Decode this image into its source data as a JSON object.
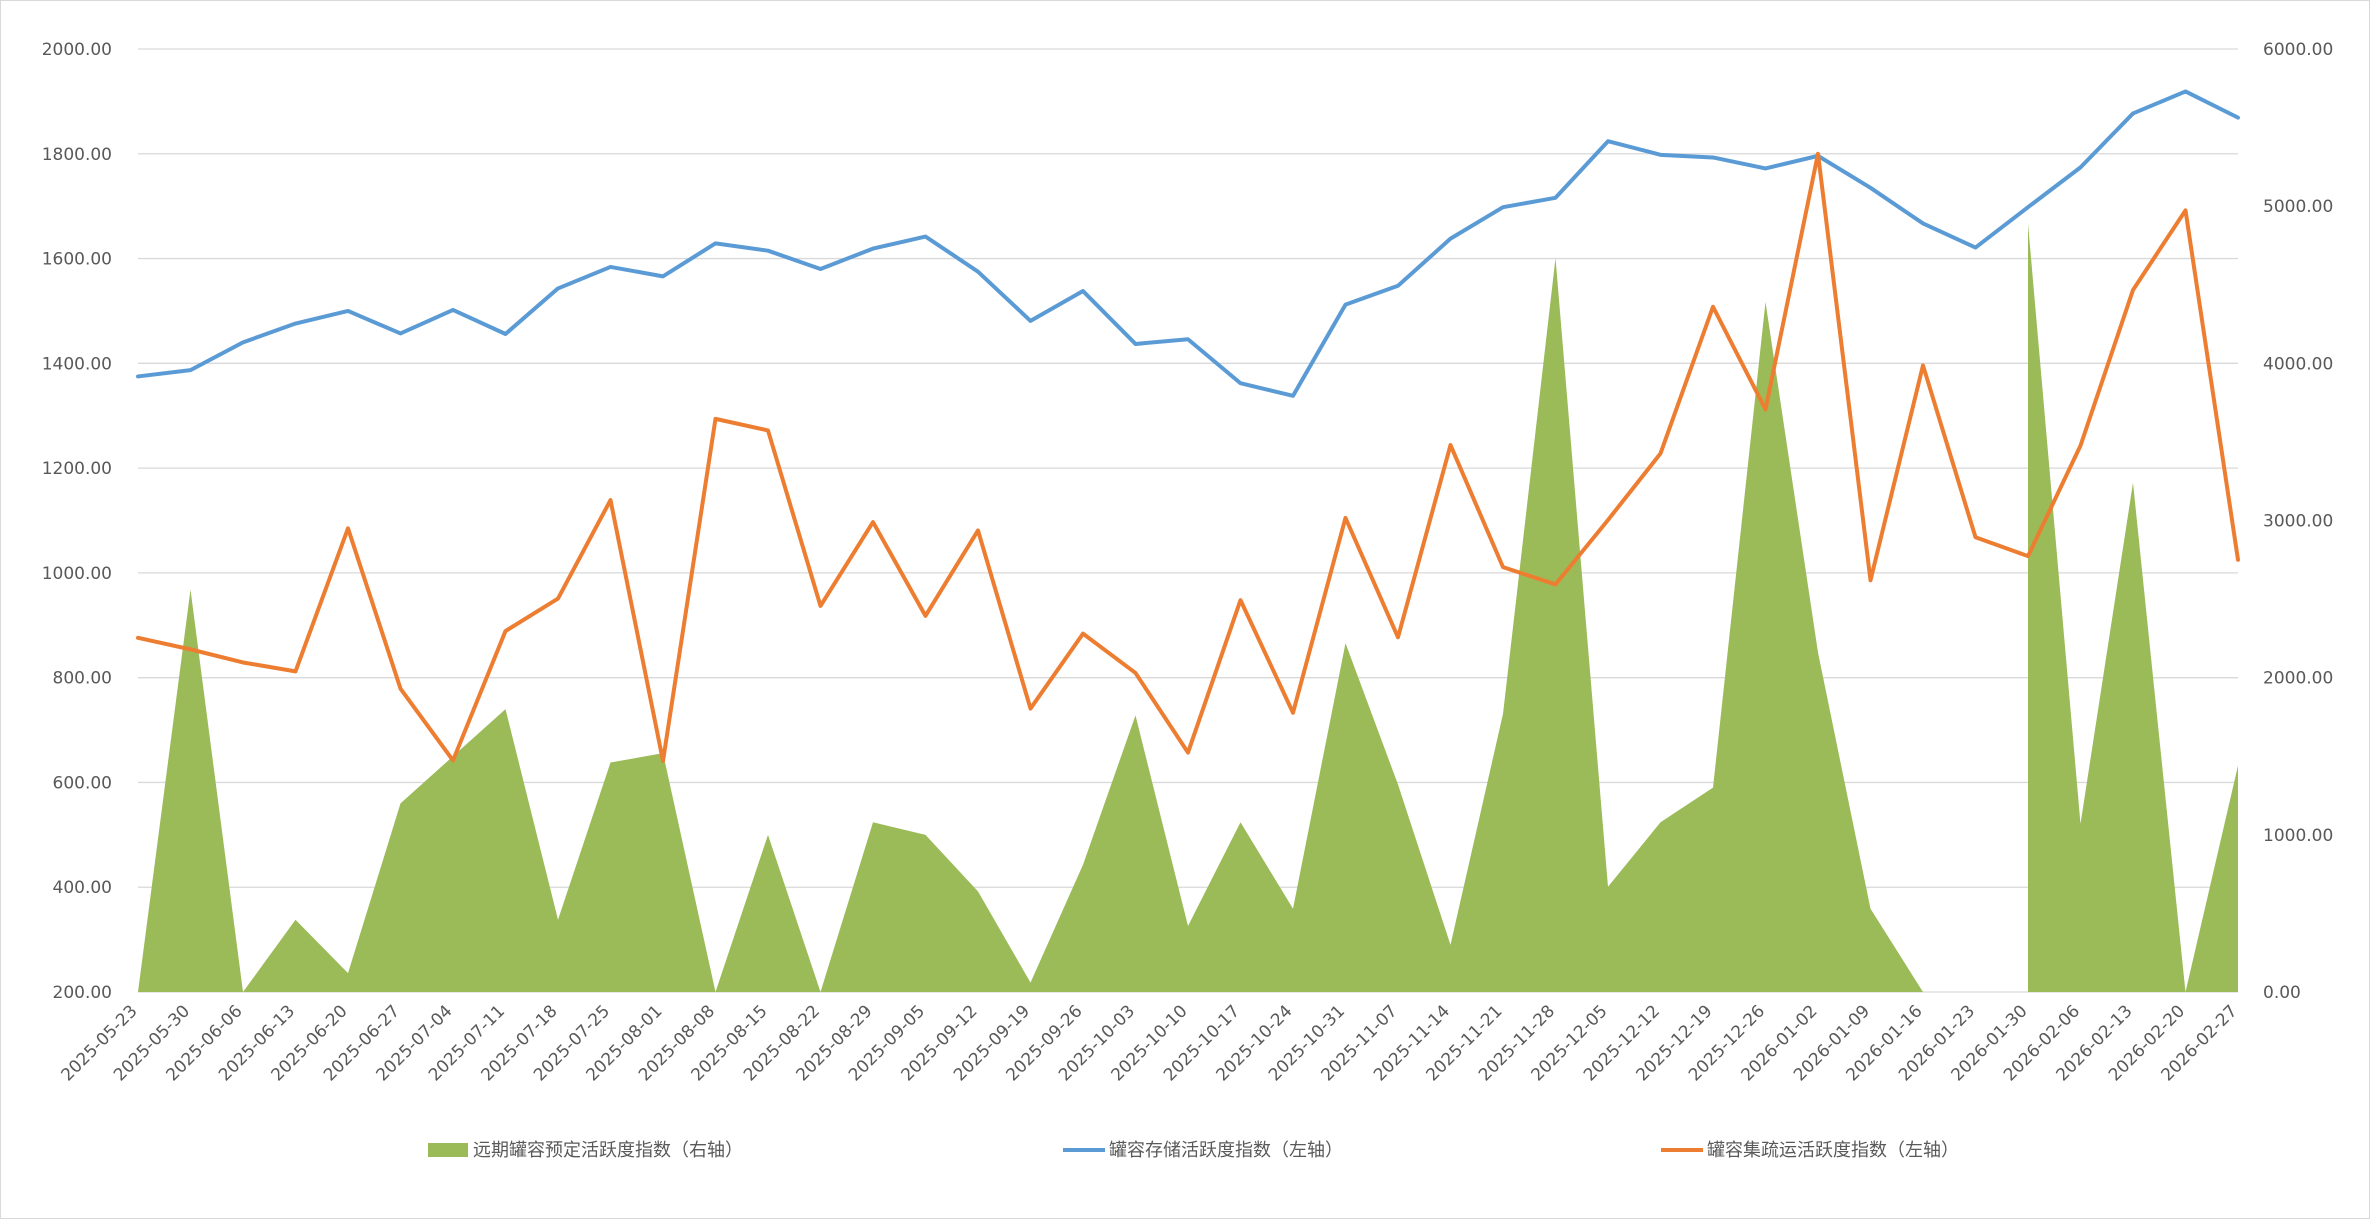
{
  "chart_data": {
    "type": "combo",
    "x": [
      "2025-05-23",
      "2025-05-30",
      "2025-06-06",
      "2025-06-13",
      "2025-06-20",
      "2025-06-27",
      "2025-07-04",
      "2025-07-11",
      "2025-07-18",
      "2025-07-25",
      "2025-08-01",
      "2025-08-08",
      "2025-08-15",
      "2025-08-22",
      "2025-08-29",
      "2025-09-05",
      "2025-09-12",
      "2025-09-19",
      "2025-09-26",
      "2025-10-03",
      "2025-10-10",
      "2025-10-17",
      "2025-10-24",
      "2025-10-31",
      "2025-11-07",
      "2025-11-14",
      "2025-11-21",
      "2025-11-28",
      "2025-12-05",
      "2025-12-12",
      "2025-12-19",
      "2025-12-26",
      "2026-01-02",
      "2026-01-09",
      "2026-01-16",
      "2026-01-23",
      "2026-01-30",
      "2026-02-06",
      "2026-02-13",
      "2026-02-20",
      "2026-02-27"
    ],
    "series": [
      {
        "name": "远期罐容预定活跃度指数（右轴）",
        "type": "area",
        "axis": "right",
        "color": "#9bbb59",
        "values": [
          0,
          2560,
          0,
          460,
          120,
          1200,
          1500,
          1800,
          460,
          1460,
          1520,
          0,
          1000,
          0,
          1080,
          1000,
          640,
          60,
          810,
          1760,
          420,
          1080,
          530,
          2220,
          1320,
          300,
          1770,
          4670,
          670,
          1080,
          1300,
          4390,
          2160,
          530,
          0,
          null,
          4890,
          1070,
          3240,
          0,
          1440
        ]
      },
      {
        "name": "罐容存储活跃度指数（左轴）",
        "type": "line",
        "axis": "left",
        "color": "#5b9bd5",
        "values": [
          1375,
          1387,
          1440,
          1476,
          1500,
          1457,
          1502,
          1456,
          1543,
          1584,
          1566,
          1629,
          1615,
          1580,
          1619,
          1642,
          1575,
          1481,
          1538,
          1437,
          1446,
          1362,
          1338,
          1512,
          1548,
          1638,
          1698,
          1716,
          1824,
          1798,
          1793,
          1772,
          1796,
          1735,
          1667,
          1621,
          1698,
          1774,
          1877,
          1919,
          1869
        ]
      },
      {
        "name": "罐容集疏运活跃度指数（左轴）",
        "type": "line",
        "axis": "left",
        "color": "#ed7d31",
        "values": [
          876,
          854,
          829,
          812,
          1085,
          779,
          642,
          889,
          951,
          1139,
          641,
          1294,
          1272,
          937,
          1097,
          918,
          1081,
          741,
          884,
          809,
          657,
          948,
          733,
          1105,
          877,
          1244,
          1011,
          978,
          1101,
          1228,
          1508,
          1312,
          1800,
          986,
          1396,
          1068,
          1032,
          1243,
          1540,
          1692,
          1025
        ]
      }
    ],
    "title": "",
    "xlabel": "",
    "ylabel": "",
    "ylim": [
      200,
      2000
    ],
    "y2lim": [
      0,
      6000
    ],
    "yticks": [
      "200.00",
      "400.00",
      "600.00",
      "800.00",
      "1000.00",
      "1200.00",
      "1400.00",
      "1600.00",
      "1800.00",
      "2000.00"
    ],
    "y2ticks": [
      "0.00",
      "1000.00",
      "2000.00",
      "3000.00",
      "4000.00",
      "5000.00",
      "6000.00"
    ],
    "grid": true,
    "legend": "bottom"
  }
}
